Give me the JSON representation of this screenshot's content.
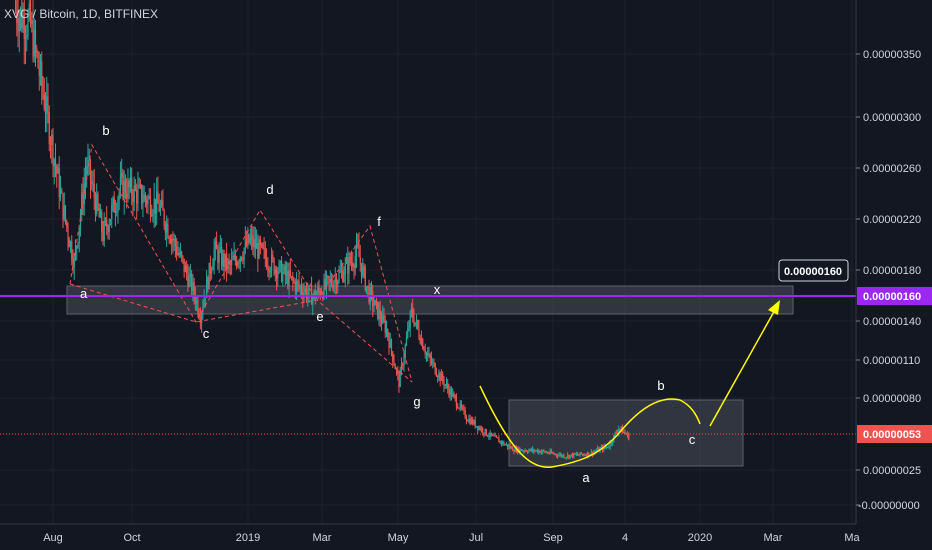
{
  "title": "XVG / Bitcoin, 1D, BITFINEX",
  "colors": {
    "background": "#131722",
    "grid": "#1e222d",
    "up": "#26a69a",
    "down": "#ef5350",
    "resistance_line": "#9c27f0",
    "price_line": "#ef5350",
    "curve": "#ffff00",
    "dashed": "#ef5350",
    "box": "#5d606b"
  },
  "chart_data": {
    "type": "candlestick",
    "y_ticks": [
      "0.00000350",
      "0.00000300",
      "0.00000260",
      "0.00000220",
      "0.00000180",
      "0.00000140",
      "0.00000110",
      "0.00000080",
      "0.00000025",
      "-0.00000000"
    ],
    "x_ticks": [
      "Aug",
      "Oct",
      "2019",
      "Mar",
      "May",
      "Jul",
      "Sep",
      "4",
      "2020",
      "Mar",
      "Ma"
    ],
    "resistance_level": "0.00000160",
    "resistance_callout": "0.00000160",
    "last_price": "0.00000053",
    "wave_labels_upper": [
      "a",
      "b",
      "c",
      "d",
      "e",
      "f",
      "g",
      "x"
    ],
    "wave_labels_lower": [
      "a",
      "b",
      "c"
    ],
    "price_path": [
      {
        "date": "2018-07-02",
        "price": 3.84e-06
      },
      {
        "date": "2018-07-14",
        "price": 3.72e-06
      },
      {
        "date": "2018-07-26",
        "price": 3.1e-06
      },
      {
        "date": "2018-08-08",
        "price": 2.35e-06
      },
      {
        "date": "2018-08-18",
        "price": 1.88e-06
      },
      {
        "date": "2018-08-28",
        "price": 2.65e-06
      },
      {
        "date": "2018-09-10",
        "price": 2.1e-06
      },
      {
        "date": "2018-09-25",
        "price": 2.48e-06
      },
      {
        "date": "2018-10-10",
        "price": 2.4e-06
      },
      {
        "date": "2018-10-25",
        "price": 2.32e-06
      },
      {
        "date": "2018-11-05",
        "price": 2.06e-06
      },
      {
        "date": "2018-11-20",
        "price": 1.7e-06
      },
      {
        "date": "2018-11-27",
        "price": 1.48e-06
      },
      {
        "date": "2018-12-08",
        "price": 1.98e-06
      },
      {
        "date": "2018-12-20",
        "price": 1.84e-06
      },
      {
        "date": "2019-01-06",
        "price": 2.05e-06
      },
      {
        "date": "2019-01-20",
        "price": 1.9e-06
      },
      {
        "date": "2019-02-10",
        "price": 1.72e-06
      },
      {
        "date": "2019-02-25",
        "price": 1.62e-06
      },
      {
        "date": "2019-03-08",
        "price": 1.7e-06
      },
      {
        "date": "2019-03-20",
        "price": 1.8e-06
      },
      {
        "date": "2019-04-02",
        "price": 1.96e-06
      },
      {
        "date": "2019-04-10",
        "price": 1.66e-06
      },
      {
        "date": "2019-04-25",
        "price": 1.36e-06
      },
      {
        "date": "2019-05-05",
        "price": 9.5e-07
      },
      {
        "date": "2019-05-15",
        "price": 1.5e-06
      },
      {
        "date": "2019-05-28",
        "price": 1.15e-06
      },
      {
        "date": "2019-06-12",
        "price": 9.2e-07
      },
      {
        "date": "2019-06-28",
        "price": 6.8e-07
      },
      {
        "date": "2019-07-15",
        "price": 5.5e-07
      },
      {
        "date": "2019-08-05",
        "price": 4.3e-07
      },
      {
        "date": "2019-08-25",
        "price": 4.2e-07
      },
      {
        "date": "2019-09-15",
        "price": 3.8e-07
      },
      {
        "date": "2019-10-05",
        "price": 4e-07
      },
      {
        "date": "2019-10-20",
        "price": 4.6e-07
      },
      {
        "date": "2019-10-28",
        "price": 6e-07
      },
      {
        "date": "2019-11-05",
        "price": 5.3e-07
      }
    ]
  }
}
